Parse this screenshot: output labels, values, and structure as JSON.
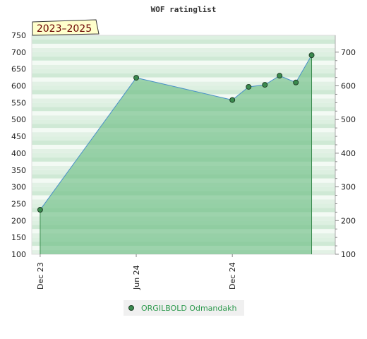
{
  "chart_data": {
    "type": "area",
    "title": "WOF ratinglist",
    "period_label": "2023–2025",
    "ylim": [
      100,
      750
    ],
    "left_ticks": [
      100,
      150,
      200,
      250,
      300,
      350,
      400,
      450,
      500,
      550,
      600,
      650,
      700,
      750
    ],
    "right_ticks": [
      100,
      200,
      300,
      400,
      500,
      600,
      700
    ],
    "x_tick_labels": [
      "Dec 23",
      "Jun 24",
      "Dec 24"
    ],
    "x_tick_dates": [
      "2023-12-01",
      "2024-06-01",
      "2024-12-01"
    ],
    "xlim": [
      "2023-11-15",
      "2025-06-15"
    ],
    "series": [
      {
        "name": "ORGILBOLD Odmandakh",
        "x": [
          "2023-12-01",
          "2024-06-01",
          "2024-12-01",
          "2025-01-01",
          "2025-02-01",
          "2025-03-01",
          "2025-04-01",
          "2025-05-01"
        ],
        "y": [
          232,
          624,
          558,
          597,
          603,
          630,
          610,
          691
        ],
        "marker_color": "#3a8a4e",
        "fill_color": "#6fbf85"
      }
    ],
    "grid": true,
    "legend_position": "bottom-center"
  }
}
